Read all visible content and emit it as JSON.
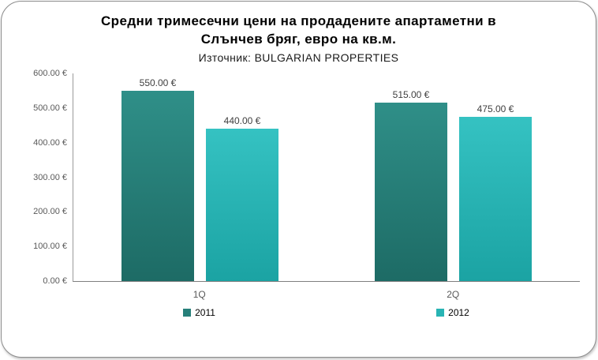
{
  "chart_data": {
    "type": "bar",
    "title_lines": [
      "Средни тримесечни цени на продадените апартаметни в",
      "Слънчев бряг, евро на кв.м."
    ],
    "subtitle": "Източник: BULGARIAN PROPERTIES",
    "categories": [
      "1Q",
      "2Q"
    ],
    "series": [
      {
        "name": "2011",
        "values": [
          550,
          515
        ],
        "labels": [
          "550.00 €",
          "515.00 €"
        ],
        "color_top": "#2f8f88",
        "color_bottom": "#1d6b65",
        "legend_color": "#27807a"
      },
      {
        "name": "2012",
        "values": [
          440,
          475
        ],
        "labels": [
          "440.00 €",
          "475.00 €"
        ],
        "color_top": "#35c2c2",
        "color_bottom": "#1ba3a3",
        "legend_color": "#28b4b4"
      }
    ],
    "ylim": [
      0,
      600
    ],
    "ytick_labels": [
      "600.00 €",
      "500.00 €",
      "400.00 €",
      "300.00 €",
      "200.00 €",
      "100.00 €",
      "0.00 €"
    ],
    "xlabel": "",
    "ylabel": "",
    "grid": false,
    "legend_position": "bottom"
  }
}
